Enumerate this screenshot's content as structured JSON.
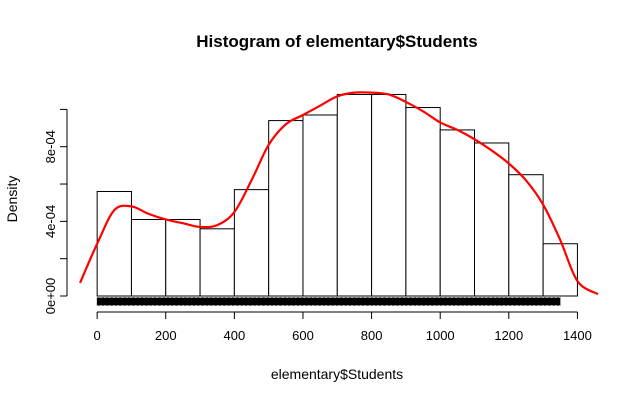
{
  "chart_data": {
    "type": "bar",
    "title": "Histogram of elementary$Students",
    "xlabel": "elementary$Students",
    "ylabel": "Density",
    "xlim": [
      -50,
      1460
    ],
    "ylim": [
      0,
      0.00112
    ],
    "x_ticks": [
      0,
      200,
      400,
      600,
      800,
      1000,
      1200,
      1400
    ],
    "y_ticks": [
      0,
      0.0002,
      0.0004,
      0.0006,
      0.0008,
      0.001
    ],
    "y_tick_labels": [
      "0e+00",
      "4e-04",
      "8e-04"
    ],
    "y_tick_labeled_values": [
      0,
      0.0004,
      0.0008
    ],
    "bins": [
      {
        "x0": 0,
        "x1": 100,
        "density": 0.00056
      },
      {
        "x0": 100,
        "x1": 200,
        "density": 0.00041
      },
      {
        "x0": 200,
        "x1": 300,
        "density": 0.00041
      },
      {
        "x0": 300,
        "x1": 400,
        "density": 0.00036
      },
      {
        "x0": 400,
        "x1": 500,
        "density": 0.00057
      },
      {
        "x0": 500,
        "x1": 600,
        "density": 0.00094
      },
      {
        "x0": 600,
        "x1": 700,
        "density": 0.00097
      },
      {
        "x0": 700,
        "x1": 800,
        "density": 0.00108
      },
      {
        "x0": 800,
        "x1": 900,
        "density": 0.00108
      },
      {
        "x0": 900,
        "x1": 1000,
        "density": 0.00101
      },
      {
        "x0": 1000,
        "x1": 1100,
        "density": 0.00089
      },
      {
        "x0": 1100,
        "x1": 1200,
        "density": 0.00082
      },
      {
        "x0": 1200,
        "x1": 1300,
        "density": 0.00065
      },
      {
        "x0": 1300,
        "x1": 1400,
        "density": 0.00028
      }
    ],
    "density_curve": {
      "color": "#ff0000",
      "x": [
        -50,
        0,
        50,
        100,
        150,
        200,
        250,
        300,
        350,
        400,
        450,
        500,
        550,
        600,
        650,
        700,
        750,
        800,
        850,
        900,
        950,
        1000,
        1050,
        1100,
        1150,
        1200,
        1250,
        1300,
        1350,
        1400,
        1460
      ],
      "y": [
        7e-05,
        0.00028,
        0.00046,
        0.00048,
        0.00044,
        0.00041,
        0.00039,
        0.00037,
        0.00038,
        0.00045,
        0.00062,
        0.00081,
        0.00092,
        0.00097,
        0.00102,
        0.00107,
        0.00109,
        0.00109,
        0.00108,
        0.00104,
        0.00099,
        0.00093,
        0.00089,
        0.00084,
        0.00078,
        0.00071,
        0.00062,
        0.00049,
        0.0003,
        8e-05,
        1e-05
      ]
    },
    "rug": {
      "x_start": 0,
      "x_end": 1350
    },
    "grid": false,
    "legend": "none"
  }
}
